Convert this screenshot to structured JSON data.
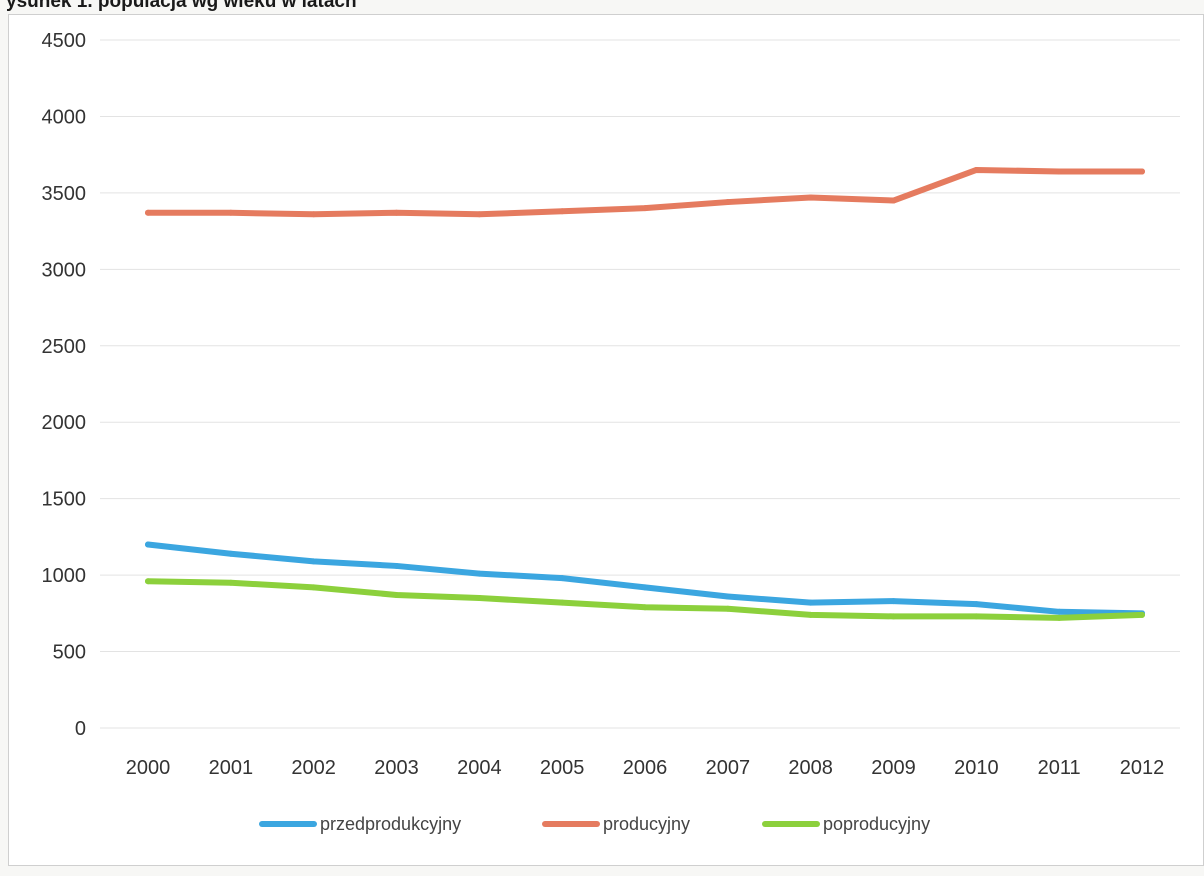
{
  "page": {
    "title": "ysunek 1. populacja wg wieku w latach"
  },
  "chart_data": {
    "type": "line",
    "title": "",
    "xlabel": "",
    "ylabel": "",
    "ylim": [
      0,
      4500
    ],
    "yticks": [
      0,
      500,
      1000,
      1500,
      2000,
      2500,
      3000,
      3500,
      4000,
      4500
    ],
    "grid": true,
    "legend_position": "bottom",
    "categories": [
      "2000",
      "2001",
      "2002",
      "2003",
      "2004",
      "2005",
      "2006",
      "2007",
      "2008",
      "2009",
      "2010",
      "2011",
      "2012"
    ],
    "series": [
      {
        "name": "przedprodukcyjny",
        "color": "#3ba6e0",
        "values": [
          1200,
          1140,
          1090,
          1060,
          1010,
          980,
          920,
          860,
          820,
          830,
          810,
          760,
          750
        ]
      },
      {
        "name": "producyjny",
        "color": "#e57b5f",
        "values": [
          3370,
          3370,
          3360,
          3370,
          3360,
          3380,
          3400,
          3440,
          3470,
          3450,
          3650,
          3640,
          3640
        ]
      },
      {
        "name": "poproducyjny",
        "color": "#8cd03c",
        "values": [
          960,
          950,
          920,
          870,
          850,
          820,
          790,
          780,
          740,
          730,
          730,
          720,
          740
        ]
      }
    ]
  }
}
